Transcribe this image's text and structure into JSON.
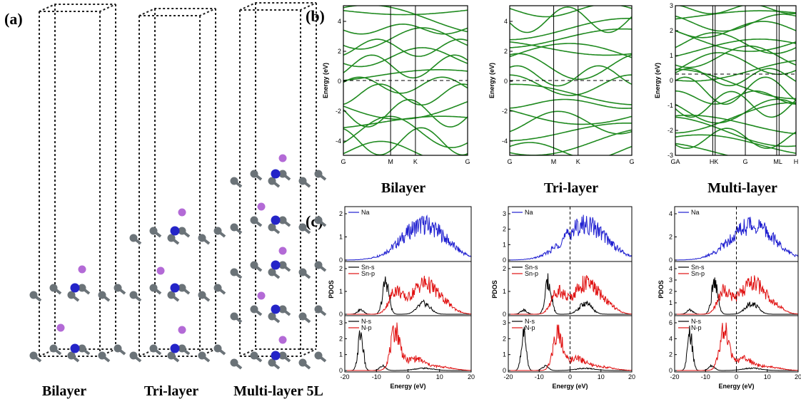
{
  "panels": {
    "a": {
      "label": "(a)",
      "captions": [
        "Bilayer",
        "Tri-layer",
        "Multi-layer 5L"
      ]
    },
    "b": {
      "label": "(b)",
      "plots": [
        {
          "caption": "Bilayer",
          "y_label": "Energy (eV)",
          "yticks": [
            "4",
            "2",
            "0",
            "-2",
            "-4"
          ],
          "xticks": [
            "G",
            "M",
            "K",
            "G"
          ]
        },
        {
          "caption": "Tri-layer",
          "y_label": "Energy (eV)",
          "yticks": [
            "4",
            "2",
            "0",
            "-2",
            "-4"
          ],
          "xticks": [
            "G",
            "M",
            "K",
            "G"
          ]
        },
        {
          "caption": "Multi-layer",
          "y_label": "Energy (eV)",
          "yticks": [
            "3",
            "2",
            "1",
            "0",
            "-1",
            "-2",
            "-3"
          ],
          "xticks": [
            "GA",
            "HK",
            "G",
            "ML",
            "H"
          ]
        }
      ]
    },
    "c": {
      "label": "(c)",
      "plots": [
        {
          "x_label": "Energy (eV)",
          "y_label": "PDOS",
          "xticks": [
            "-20",
            "-10",
            "0",
            "10",
            "20"
          ],
          "subplots": [
            {
              "legend": [
                "Na"
              ],
              "yticks": [
                "0",
                "1",
                "2"
              ]
            },
            {
              "legend": [
                "Sn-s",
                "Sn-p"
              ],
              "yticks": [
                "0",
                "1",
                "2"
              ]
            },
            {
              "legend": [
                "N-s",
                "N-p"
              ],
              "yticks": [
                "0",
                "1",
                "2",
                "3"
              ]
            }
          ]
        },
        {
          "x_label": "Energy (eV)",
          "y_label": "PDOS",
          "xticks": [
            "-20",
            "-10",
            "0",
            "10",
            "20"
          ],
          "subplots": [
            {
              "legend": [
                "Na"
              ],
              "yticks": [
                "0",
                "1",
                "2",
                "3"
              ]
            },
            {
              "legend": [
                "Sn-s",
                "Sn-p"
              ],
              "yticks": [
                "0",
                "1",
                "2"
              ]
            },
            {
              "legend": [
                "N-s",
                "N-p"
              ],
              "yticks": [
                "0",
                "1",
                "2",
                "3"
              ]
            }
          ]
        },
        {
          "x_label": "Energy (eV)",
          "y_label": "PDOS",
          "xticks": [
            "-20",
            "-10",
            "0",
            "10",
            "20"
          ],
          "subplots": [
            {
              "legend": [
                "Na"
              ],
              "yticks": [
                "0",
                "2",
                "4"
              ]
            },
            {
              "legend": [
                "Sn-s",
                "Sn-p"
              ],
              "yticks": [
                "0",
                "1",
                "2",
                "3",
                "4"
              ]
            },
            {
              "legend": [
                "N-s",
                "N-p"
              ],
              "yticks": [
                "0",
                "2",
                "4",
                "6"
              ]
            }
          ]
        }
      ]
    }
  }
}
